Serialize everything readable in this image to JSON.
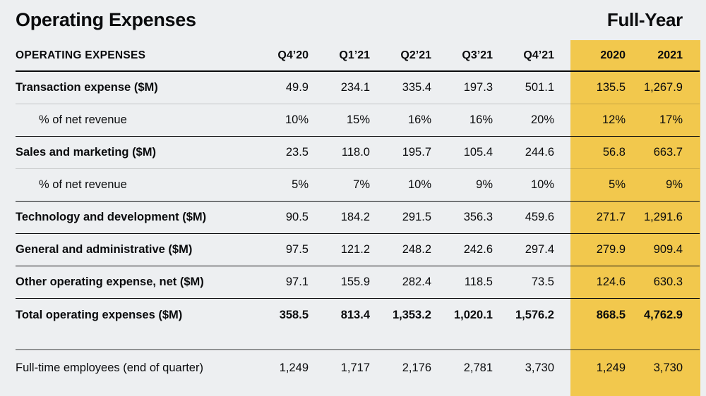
{
  "page": {
    "title": "Operating Expenses",
    "full_year_label": "Full-Year"
  },
  "chart_data": {
    "type": "table",
    "title": "Operating Expenses",
    "columns": [
      "OPERATING EXPENSES",
      "Q4’20",
      "Q1’21",
      "Q2’21",
      "Q3’21",
      "Q4’21",
      "2020",
      "2021"
    ],
    "highlighted_columns": [
      "2020",
      "2021"
    ],
    "highlight_group_label": "Full-Year",
    "rows": [
      {
        "label": "Transaction expense ($M)",
        "style": "main",
        "values": [
          "49.9",
          "234.1",
          "335.4",
          "197.3",
          "501.1",
          "135.5",
          "1,267.9"
        ]
      },
      {
        "label": "% of net revenue",
        "style": "sub",
        "values": [
          "10%",
          "15%",
          "16%",
          "16%",
          "20%",
          "12%",
          "17%"
        ]
      },
      {
        "label": "Sales and marketing ($M)",
        "style": "main",
        "values": [
          "23.5",
          "118.0",
          "195.7",
          "105.4",
          "244.6",
          "56.8",
          "663.7"
        ]
      },
      {
        "label": "% of net revenue",
        "style": "sub",
        "values": [
          "5%",
          "7%",
          "10%",
          "9%",
          "10%",
          "5%",
          "9%"
        ]
      },
      {
        "label": "Technology and development ($M)",
        "style": "main",
        "values": [
          "90.5",
          "184.2",
          "291.5",
          "356.3",
          "459.6",
          "271.7",
          "1,291.6"
        ]
      },
      {
        "label": "General and administrative ($M)",
        "style": "main",
        "values": [
          "97.5",
          "121.2",
          "248.2",
          "242.6",
          "297.4",
          "279.9",
          "909.4"
        ]
      },
      {
        "label": "Other operating expense, net ($M)",
        "style": "main",
        "values": [
          "97.1",
          "155.9",
          "282.4",
          "118.5",
          "73.5",
          "124.6",
          "630.3"
        ]
      },
      {
        "label": "Total operating expenses ($M)",
        "style": "total",
        "values": [
          "358.5",
          "813.4",
          "1,353.2",
          "1,020.1",
          "1,576.2",
          "868.5",
          "4,762.9"
        ]
      },
      {
        "label": "Full-time employees (end of quarter)",
        "style": "employees",
        "values": [
          "1,249",
          "1,717",
          "2,176",
          "2,781",
          "3,730",
          "1,249",
          "3,730"
        ]
      }
    ]
  },
  "colors": {
    "background": "#EDEFF1",
    "highlight": "#F2C84D",
    "text": "#0A0B0D"
  }
}
